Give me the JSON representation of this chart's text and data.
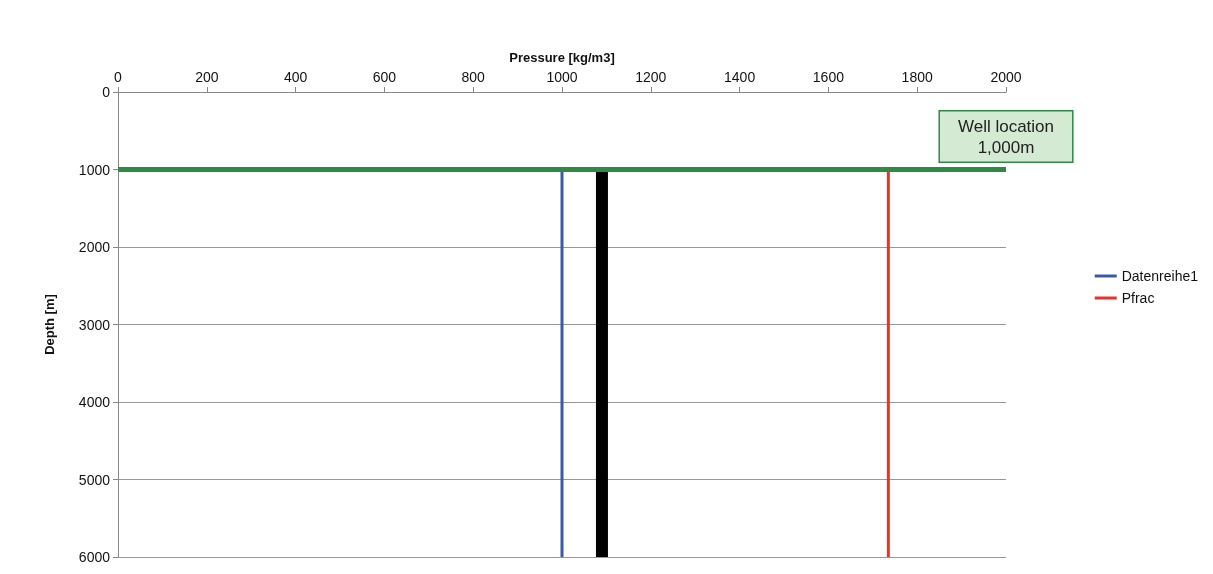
{
  "chart_data": {
    "type": "line",
    "xlabel": "Pressure [kg/m3]",
    "ylabel": "Depth [m]",
    "xlim": [
      0,
      2000
    ],
    "xticks": [
      0,
      200,
      400,
      600,
      800,
      1000,
      1200,
      1400,
      1600,
      1800,
      2000
    ],
    "ylim": [
      6000,
      0
    ],
    "yticks": [
      0,
      1000,
      2000,
      3000,
      4000,
      5000,
      6000
    ],
    "grid": "y",
    "legend": "right",
    "marker": "none",
    "line_style": "solid",
    "series": [
      {
        "name": "Datenreihe1",
        "color": "#3a5aa8",
        "x": [
          1000,
          1000
        ],
        "values": [
          1000,
          6000
        ]
      },
      {
        "color": "#000000",
        "x": [
          1090,
          1090
        ],
        "values": [
          1000,
          6000
        ]
      },
      {
        "name": "Pfrac",
        "color": "#e8322a",
        "x": [
          1735,
          1735
        ],
        "values": [
          1000,
          6000
        ]
      }
    ],
    "ref_lines": [
      {
        "axis": "y",
        "value": 1000,
        "label": "Well location\n1,000m",
        "color": "#2f8a45"
      }
    ]
  }
}
